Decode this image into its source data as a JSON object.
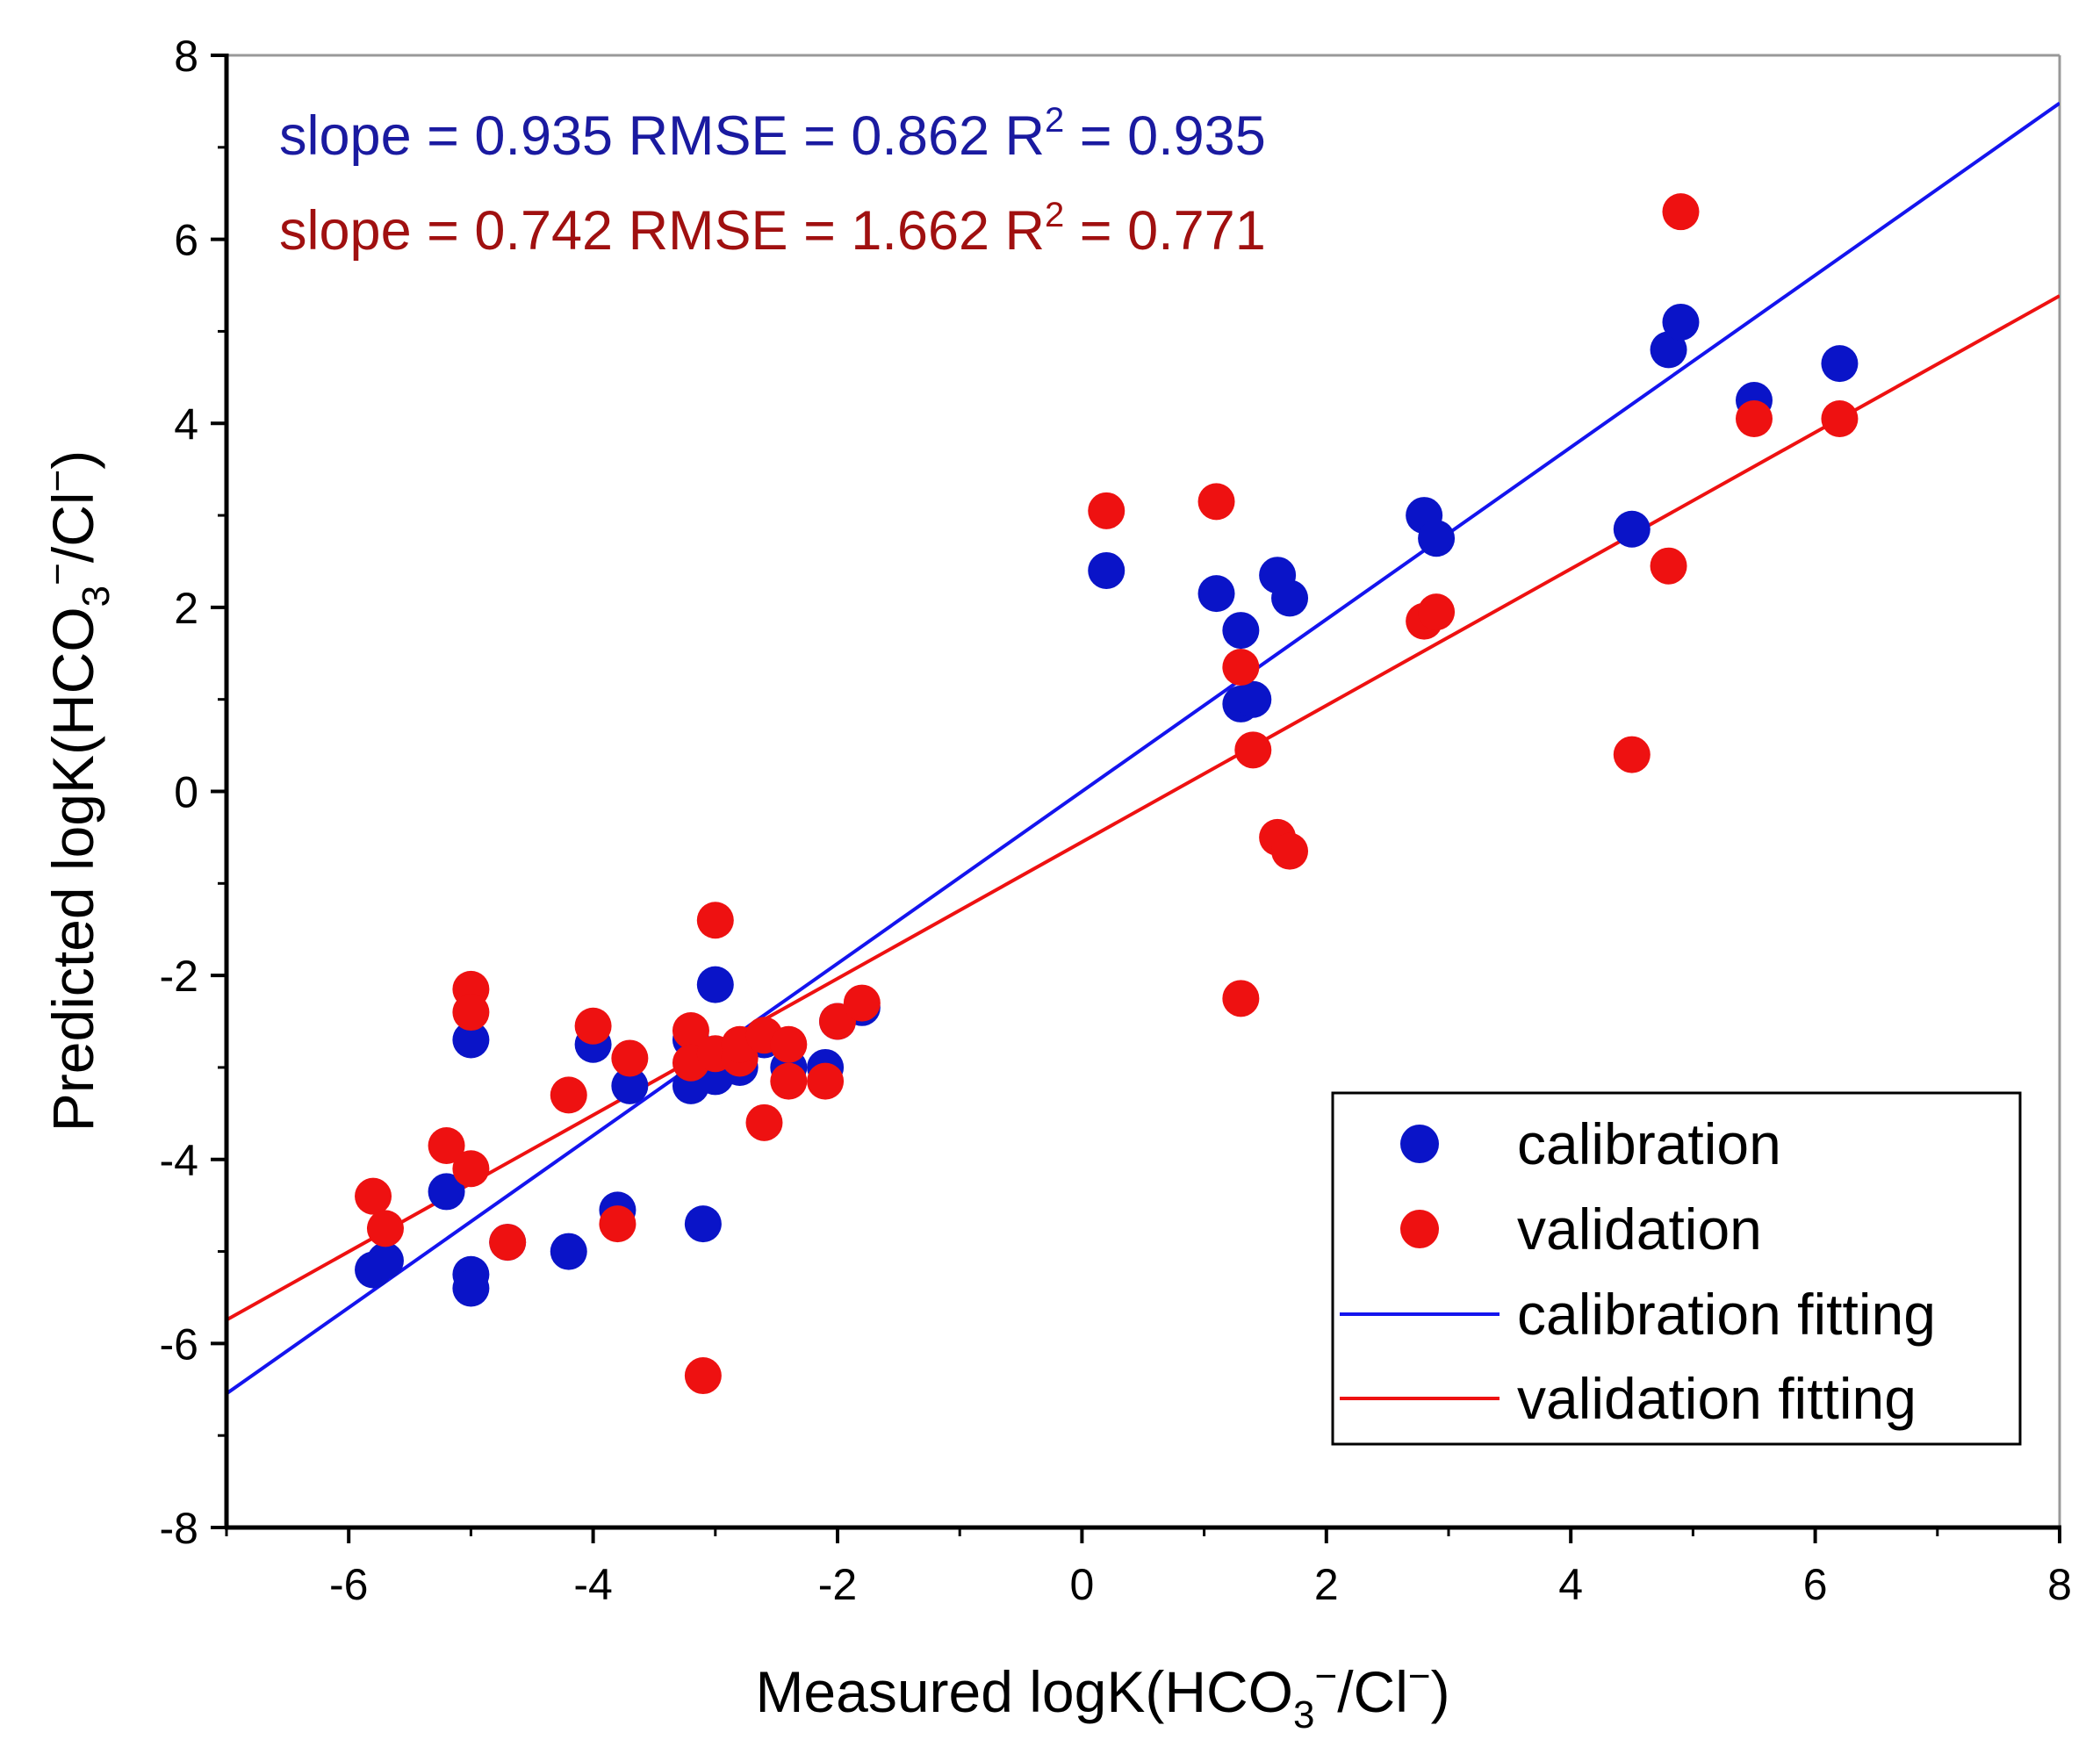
{
  "chart_data": {
    "type": "scatter",
    "title": "",
    "xlabel": "Measured logK(HCO3⁻/Cl⁻)",
    "xlabel_parts": {
      "prefix": "Measured logK(HCO",
      "sub": "3",
      "sup": "−",
      "suffix": "/Cl",
      "sup2": "−",
      "end": ")"
    },
    "ylabel": "Predicted logK(HCO3⁻/Cl⁻)",
    "ylabel_parts": {
      "prefix": "Predicted logK(HCO",
      "sub": "3",
      "sup": "−",
      "suffix": "/Cl",
      "sup2": "−",
      "end": ")"
    },
    "xlim": [
      -7,
      8
    ],
    "ylim": [
      -8,
      8
    ],
    "xticks": [
      -6,
      -4,
      -2,
      0,
      2,
      4,
      6,
      8
    ],
    "xtick_labels": [
      "-6",
      "-4",
      "-2",
      "0",
      "2",
      "4",
      "6",
      "8"
    ],
    "yticks": [
      -8,
      -6,
      -4,
      -2,
      0,
      2,
      4,
      6,
      8
    ],
    "ytick_labels": [
      "-8",
      "-6",
      "-4",
      "-2",
      "0",
      "2",
      "4",
      "6",
      "8"
    ],
    "grid": false,
    "legend_position": "bottom-right",
    "colors": {
      "calibration": "#0a14c8",
      "validation": "#ee1111",
      "cal_line": "#1414ee",
      "val_line": "#ee1111",
      "cal_text": "#1a1aa0",
      "val_text": "#a01010"
    },
    "annotations": [
      {
        "id": "calibration-stats",
        "prefix": "slope = 0.935 RMSE = 0.862 R",
        "sup": "2",
        "suffix": " = 0.935"
      },
      {
        "id": "validation-stats",
        "prefix": "slope = 0.742 RMSE = 1.662 R",
        "sup": "2",
        "suffix": " = 0.771"
      }
    ],
    "legend": [
      {
        "label": "calibration",
        "kind": "marker",
        "series": "calibration"
      },
      {
        "label": "validation",
        "kind": "marker",
        "series": "validation"
      },
      {
        "label": "calibration fitting",
        "kind": "line",
        "series": "cal_line"
      },
      {
        "label": "validation fitting",
        "kind": "line",
        "series": "val_line"
      }
    ],
    "series": [
      {
        "name": "calibration",
        "points": [
          [
            -5.8,
            -5.2
          ],
          [
            -5.7,
            -5.1
          ],
          [
            -5.2,
            -4.35
          ],
          [
            -5.0,
            -2.7
          ],
          [
            -5.0,
            -5.25
          ],
          [
            -5.0,
            -5.4
          ],
          [
            -4.7,
            -4.9
          ],
          [
            -4.2,
            -5.0
          ],
          [
            -4.0,
            -2.75
          ],
          [
            -3.8,
            -4.55
          ],
          [
            -3.7,
            -3.2
          ],
          [
            -3.2,
            -3.2
          ],
          [
            -3.2,
            -2.7
          ],
          [
            -3.1,
            -4.7
          ],
          [
            -3.0,
            -2.1
          ],
          [
            -3.0,
            -3.1
          ],
          [
            -2.8,
            -3.0
          ],
          [
            -2.6,
            -2.7
          ],
          [
            -2.4,
            -3.0
          ],
          [
            -2.1,
            -3.0
          ],
          [
            -2.0,
            -2.5
          ],
          [
            -1.8,
            -2.35
          ],
          [
            0.2,
            2.4
          ],
          [
            1.1,
            2.15
          ],
          [
            1.3,
            1.75
          ],
          [
            1.3,
            0.95
          ],
          [
            1.4,
            1.0
          ],
          [
            1.6,
            2.35
          ],
          [
            1.7,
            2.1
          ],
          [
            2.8,
            3.0
          ],
          [
            2.9,
            2.75
          ],
          [
            4.5,
            2.85
          ],
          [
            4.8,
            4.8
          ],
          [
            4.9,
            5.1
          ],
          [
            5.5,
            4.25
          ],
          [
            6.2,
            4.65
          ]
        ]
      },
      {
        "name": "validation",
        "points": [
          [
            -5.8,
            -4.4
          ],
          [
            -5.7,
            -4.75
          ],
          [
            -5.2,
            -3.85
          ],
          [
            -5.0,
            -2.15
          ],
          [
            -5.0,
            -2.4
          ],
          [
            -5.0,
            -4.1
          ],
          [
            -4.7,
            -4.9
          ],
          [
            -4.2,
            -3.3
          ],
          [
            -4.0,
            -2.55
          ],
          [
            -3.8,
            -4.7
          ],
          [
            -3.7,
            -2.9
          ],
          [
            -3.2,
            -2.6
          ],
          [
            -3.2,
            -2.95
          ],
          [
            -3.1,
            -6.35
          ],
          [
            -3.0,
            -1.4
          ],
          [
            -3.0,
            -2.85
          ],
          [
            -2.8,
            -2.9
          ],
          [
            -2.8,
            -2.75
          ],
          [
            -2.6,
            -3.6
          ],
          [
            -2.6,
            -2.65
          ],
          [
            -2.4,
            -2.75
          ],
          [
            -2.4,
            -3.15
          ],
          [
            -2.1,
            -3.15
          ],
          [
            -2.0,
            -2.5
          ],
          [
            -1.8,
            -2.3
          ],
          [
            0.2,
            3.05
          ],
          [
            1.1,
            3.15
          ],
          [
            1.3,
            1.35
          ],
          [
            1.3,
            -2.25
          ],
          [
            1.4,
            0.45
          ],
          [
            1.6,
            -0.5
          ],
          [
            1.7,
            -0.65
          ],
          [
            2.8,
            1.85
          ],
          [
            2.9,
            1.95
          ],
          [
            4.5,
            0.4
          ],
          [
            4.8,
            2.45
          ],
          [
            4.9,
            6.3
          ],
          [
            5.5,
            4.05
          ],
          [
            6.2,
            4.05
          ]
        ]
      }
    ],
    "fit_lines": [
      {
        "name": "calibration fitting",
        "slope": 0.935,
        "intercept": 0.0,
        "x_range": [
          -7,
          8
        ]
      },
      {
        "name": "validation fitting",
        "slope": 0.742,
        "intercept": -0.55,
        "x_range": [
          -7,
          8
        ]
      }
    ]
  }
}
